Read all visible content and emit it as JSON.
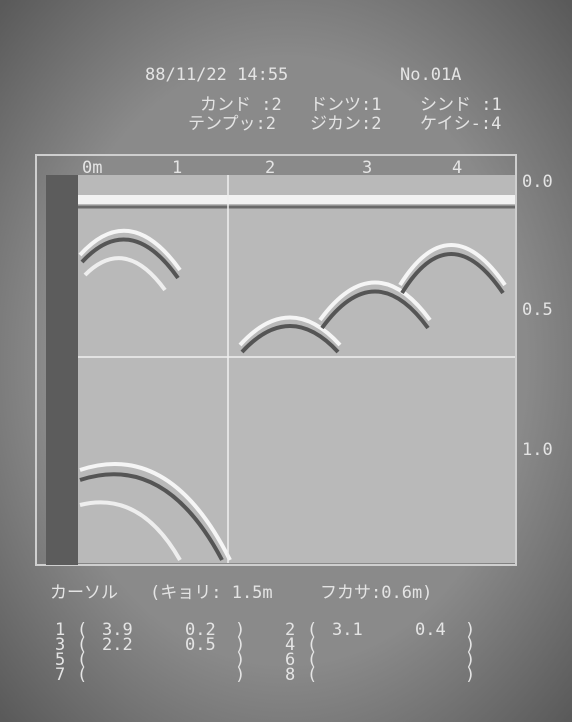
{
  "header": {
    "datetime": "88/11/22 14:55",
    "record": "No.01A"
  },
  "settings": {
    "line1": [
      "カンド :2",
      "ドンツ:1",
      "シンド :1"
    ],
    "line2": [
      "テンプッ:2",
      "ジカン:2",
      "ケイシ-:4"
    ]
  },
  "scale": {
    "distance": [
      "0m",
      "1",
      "2",
      "3",
      "4"
    ],
    "depth": [
      "0.0",
      "0.5",
      "1.0"
    ]
  },
  "cursor": {
    "label": "カーソル",
    "distance": "(キョリ: 1.5m",
    "depth": "フカサ:0.6m)"
  },
  "table": {
    "rows": [
      [
        {
          "no": "1",
          "distance": "3.9",
          "depth": "0.2"
        },
        {
          "no": "2",
          "distance": "3.1",
          "depth": "0.4"
        }
      ],
      [
        {
          "no": "3",
          "distance": "2.2",
          "depth": "0.5"
        },
        {
          "no": "4"
        }
      ],
      [
        {
          "no": "5"
        },
        {
          "no": "6"
        }
      ],
      [
        {
          "no": "7"
        },
        {
          "no": "8"
        }
      ]
    ]
  }
}
